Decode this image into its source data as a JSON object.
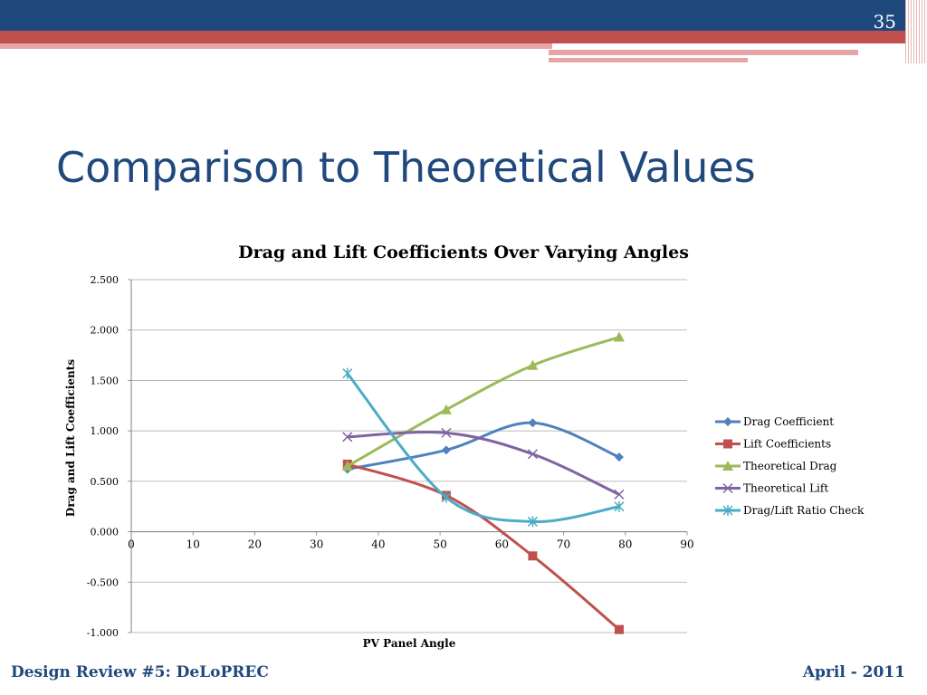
{
  "slide": {
    "number": "35",
    "title": "Comparison to Theoretical Values"
  },
  "footer": {
    "left": "Design Review #5: DeLoPREC",
    "right": "April - 2011"
  },
  "colors": {
    "navy": "#1f497d",
    "red": "#c0504d",
    "pink": "#e6a5a4"
  },
  "chart_data": {
    "type": "line",
    "title": "Drag and Lift Coefficients Over Varying Angles",
    "xlabel": "PV Panel Angle",
    "ylabel": "Drag and Lift Coefficients",
    "xlim": [
      0,
      90
    ],
    "ylim": [
      -1.0,
      2.5
    ],
    "xticks": [
      "0",
      "10",
      "20",
      "30",
      "40",
      "50",
      "60",
      "70",
      "80",
      "90"
    ],
    "yticks": [
      "2.500",
      "2.000",
      "1.500",
      "1.000",
      "0.500",
      "0.000",
      "-0.500",
      "-1.000"
    ],
    "grid": true,
    "legend": "right",
    "x": [
      35,
      51,
      65,
      79
    ],
    "series": [
      {
        "name": "Drag Coefficient",
        "color": "#4f81bd",
        "marker": "diamond",
        "values": [
          0.62,
          0.81,
          1.08,
          0.74
        ]
      },
      {
        "name": "Lift Coefficients",
        "color": "#c0504d",
        "marker": "square",
        "values": [
          0.67,
          0.36,
          -0.24,
          -0.97
        ]
      },
      {
        "name": "Theoretical Drag",
        "color": "#9bbb59",
        "marker": "triangle",
        "values": [
          0.65,
          1.21,
          1.65,
          1.93
        ]
      },
      {
        "name": "Theoretical Lift",
        "color": "#8064a2",
        "marker": "x",
        "values": [
          0.94,
          0.98,
          0.77,
          0.37
        ]
      },
      {
        "name": "Drag/Lift Ratio Check",
        "color": "#4bacc6",
        "marker": "star",
        "values": [
          1.57,
          0.34,
          0.1,
          0.25
        ]
      }
    ]
  }
}
